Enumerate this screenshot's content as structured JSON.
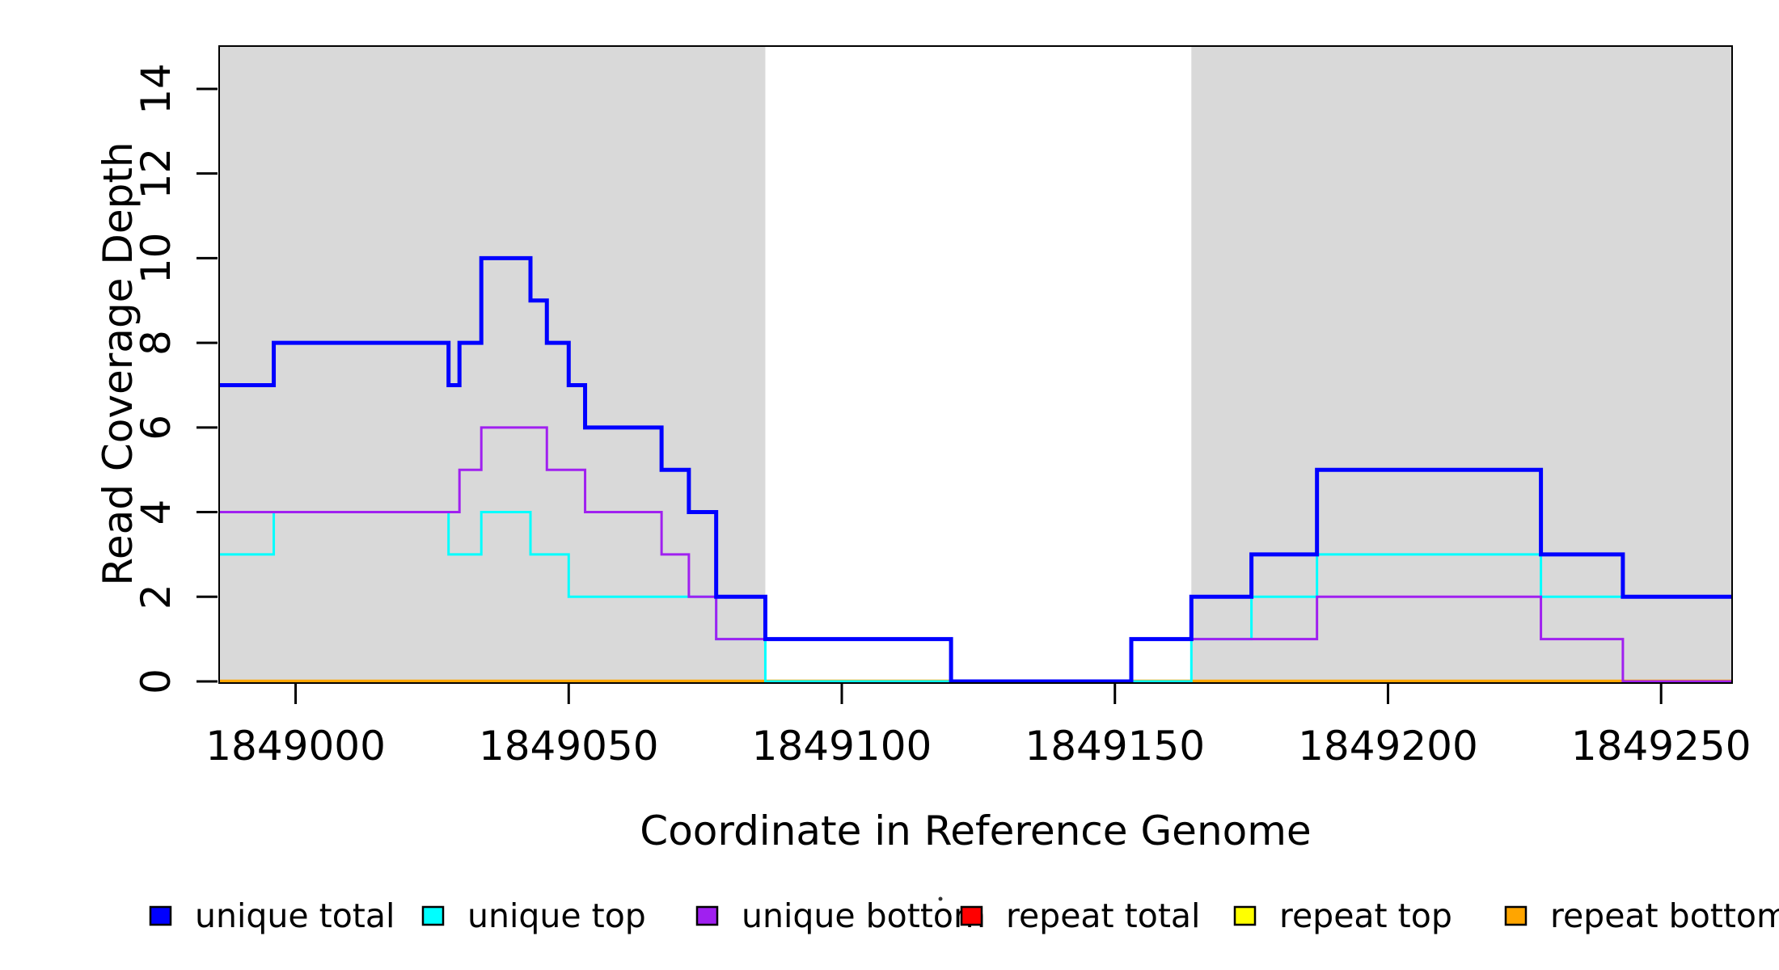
{
  "chart_data": {
    "type": "line",
    "subtype": "step-coverage-plot",
    "title": "",
    "xlabel": "Coordinate in Reference Genome",
    "ylabel": "Read Coverage Depth",
    "xlim": [
      1848986,
      1849263
    ],
    "ylim": [
      0,
      15
    ],
    "xticks": [
      1849000,
      1849050,
      1849100,
      1849150,
      1849200,
      1849250
    ],
    "yticks": [
      0,
      2,
      4,
      6,
      8,
      10,
      12,
      14
    ],
    "grid": false,
    "background_color": "#ffffff",
    "shaded_regions": [
      {
        "name": "unique-region-left",
        "xstart": 1848986,
        "xend": 1849086,
        "color": "#d9d9d9"
      },
      {
        "name": "unique-region-right",
        "xstart": 1849164,
        "xend": 1849263,
        "color": "#d9d9d9"
      }
    ],
    "series": [
      {
        "name": "repeat total",
        "color": "#ff0000",
        "line_width": 2.5,
        "steps": [
          [
            1848986,
            0
          ]
        ]
      },
      {
        "name": "repeat top",
        "color": "#ffff00",
        "line_width": 2.5,
        "steps": [
          [
            1848986,
            0
          ]
        ]
      },
      {
        "name": "repeat bottom",
        "color": "#ffa500",
        "line_width": 4.5,
        "steps": [
          [
            1848986,
            0
          ]
        ]
      },
      {
        "name": "unique top",
        "color": "#00ffff",
        "line_width": 3,
        "steps": [
          [
            1848986,
            3
          ],
          [
            1848996,
            4
          ],
          [
            1849028,
            3
          ],
          [
            1849034,
            4
          ],
          [
            1849043,
            3
          ],
          [
            1849050,
            2
          ],
          [
            1849077,
            1
          ],
          [
            1849086,
            0
          ],
          [
            1849164,
            1
          ],
          [
            1849175,
            2
          ],
          [
            1849187,
            3
          ],
          [
            1849228,
            2
          ]
        ]
      },
      {
        "name": "unique bottom",
        "color": "#a020f0",
        "line_width": 3,
        "steps": [
          [
            1848986,
            4
          ],
          [
            1849030,
            5
          ],
          [
            1849034,
            6
          ],
          [
            1849046,
            5
          ],
          [
            1849053,
            4
          ],
          [
            1849067,
            3
          ],
          [
            1849072,
            2
          ],
          [
            1849077,
            1
          ],
          [
            1849120,
            0
          ],
          [
            1849153,
            1
          ],
          [
            1849187,
            2
          ],
          [
            1849228,
            1
          ],
          [
            1849243,
            0
          ]
        ]
      },
      {
        "name": "unique total",
        "color": "#0000ff",
        "line_width": 5,
        "steps": [
          [
            1848986,
            7
          ],
          [
            1848996,
            8
          ],
          [
            1849028,
            7
          ],
          [
            1849030,
            8
          ],
          [
            1849034,
            10
          ],
          [
            1849043,
            9
          ],
          [
            1849046,
            8
          ],
          [
            1849050,
            7
          ],
          [
            1849053,
            6
          ],
          [
            1849067,
            5
          ],
          [
            1849072,
            4
          ],
          [
            1849077,
            2
          ],
          [
            1849086,
            1
          ],
          [
            1849120,
            0
          ],
          [
            1849153,
            1
          ],
          [
            1849164,
            2
          ],
          [
            1849175,
            3
          ],
          [
            1849187,
            5
          ],
          [
            1849228,
            3
          ],
          [
            1849243,
            2
          ]
        ]
      }
    ],
    "legend": {
      "position": "bottom",
      "swatch_border_color": "#000000",
      "items": [
        {
          "label": "unique total",
          "color": "#0000ff"
        },
        {
          "label": "unique top",
          "color": "#00ffff"
        },
        {
          "label": "unique bottom",
          "color": "#a020f0"
        },
        {
          "label": "repeat total",
          "color": "#ff0000"
        },
        {
          "label": "repeat top",
          "color": "#ffff00"
        },
        {
          "label": "repeat bottom",
          "color": "#ffa500"
        }
      ]
    },
    "annotations": {
      "stray_dot_color": "#333333"
    }
  }
}
